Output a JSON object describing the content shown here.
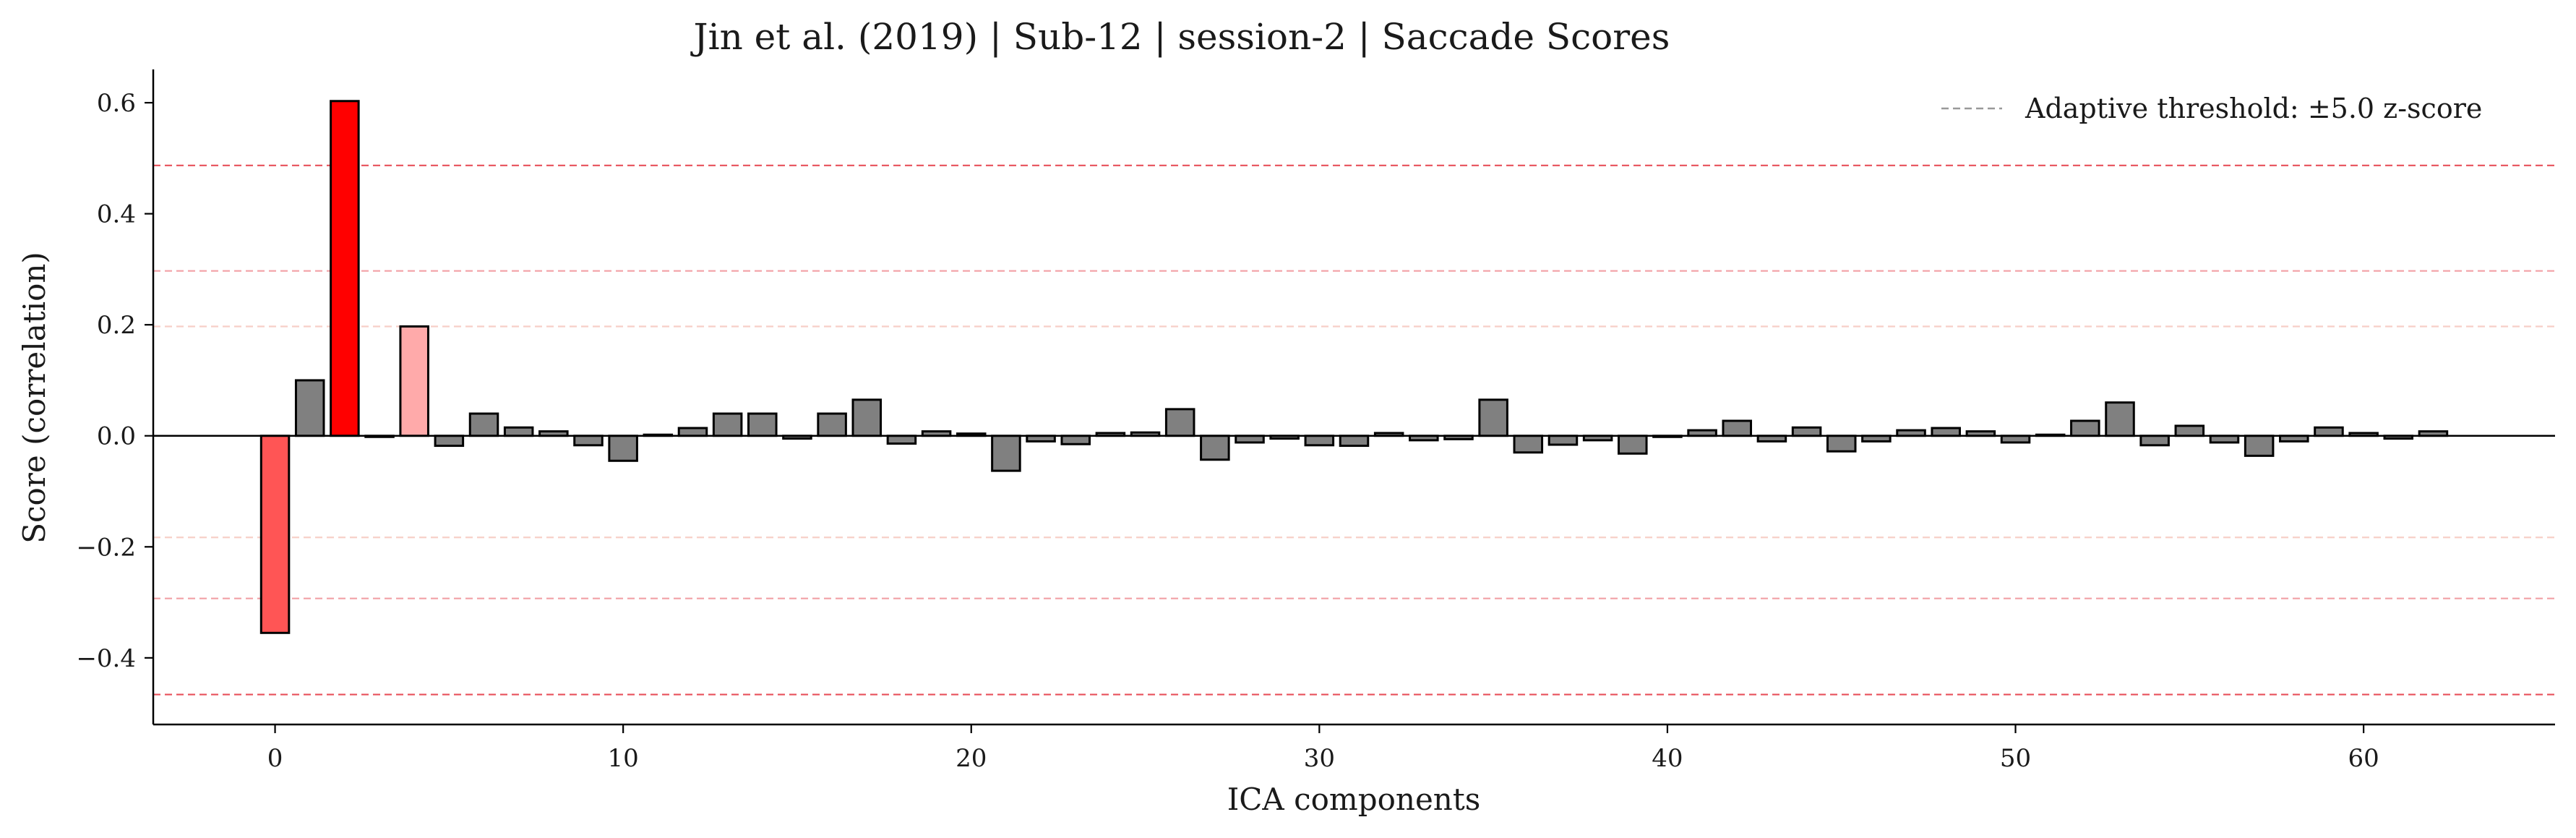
{
  "chart_data": {
    "type": "bar",
    "title": "Jin et al. (2019) | Sub-12 | session-2 | Saccade Scores",
    "xlabel": "ICA components",
    "ylabel": "Score (correlation)",
    "xlim": [
      -3.5,
      65.5
    ],
    "ylim": [
      -0.52,
      0.66
    ],
    "xticks": [
      0,
      10,
      20,
      30,
      40,
      50,
      60
    ],
    "xtick_labels": [
      "0",
      "10",
      "20",
      "30",
      "40",
      "50",
      "60"
    ],
    "yticks": [
      -0.4,
      -0.2,
      0.0,
      0.2,
      0.4,
      0.6
    ],
    "ytick_labels": [
      "−0.4",
      "−0.2",
      "0.0",
      "0.2",
      "0.4",
      "0.6"
    ],
    "grid": false,
    "legend": {
      "location": "top-right",
      "entries": [
        {
          "label": "Adaptive threshold: ±5.0 z-score",
          "color": "#999999",
          "style": "dashed"
        }
      ]
    },
    "threshold_lines": [
      {
        "y": 0.487,
        "color": "#e8505b"
      },
      {
        "y": 0.297,
        "color": "#f2a0a6"
      },
      {
        "y": 0.197,
        "color": "#f7cfc8"
      },
      {
        "y": -0.183,
        "color": "#f7cfc8"
      },
      {
        "y": -0.293,
        "color": "#f2a0a6"
      },
      {
        "y": -0.466,
        "color": "#e8505b"
      }
    ],
    "categories": [
      0,
      1,
      2,
      3,
      4,
      5,
      6,
      7,
      8,
      9,
      10,
      11,
      12,
      13,
      14,
      15,
      16,
      17,
      18,
      19,
      20,
      21,
      22,
      23,
      24,
      25,
      26,
      27,
      28,
      29,
      30,
      31,
      32,
      33,
      34,
      35,
      36,
      37,
      38,
      39,
      40,
      41,
      42,
      43,
      44,
      45,
      46,
      47,
      48,
      49,
      50,
      51,
      52,
      53,
      54,
      55,
      56,
      57,
      58,
      59,
      60,
      61,
      62
    ],
    "values": [
      -0.355,
      0.1,
      0.603,
      -0.002,
      0.197,
      -0.018,
      0.04,
      0.015,
      0.008,
      -0.017,
      -0.045,
      0.002,
      0.014,
      0.04,
      0.04,
      -0.005,
      0.04,
      0.065,
      -0.014,
      0.008,
      0.004,
      -0.063,
      -0.01,
      -0.015,
      0.005,
      0.006,
      0.048,
      -0.043,
      -0.012,
      -0.005,
      -0.017,
      -0.018,
      0.005,
      -0.008,
      -0.006,
      0.065,
      -0.03,
      -0.016,
      -0.008,
      -0.032,
      -0.002,
      0.01,
      0.027,
      -0.01,
      0.015,
      -0.028,
      -0.01,
      0.01,
      0.014,
      0.008,
      -0.012,
      0.002,
      0.027,
      0.06,
      -0.017,
      0.018,
      -0.012,
      -0.036,
      -0.01,
      0.015,
      0.005,
      -0.005,
      0.008
    ],
    "bar_colors": [
      "#ff5555",
      "#808080",
      "#ff0000",
      "#808080",
      "#ffaaaa"
    ],
    "default_bar_color": "#808080"
  }
}
